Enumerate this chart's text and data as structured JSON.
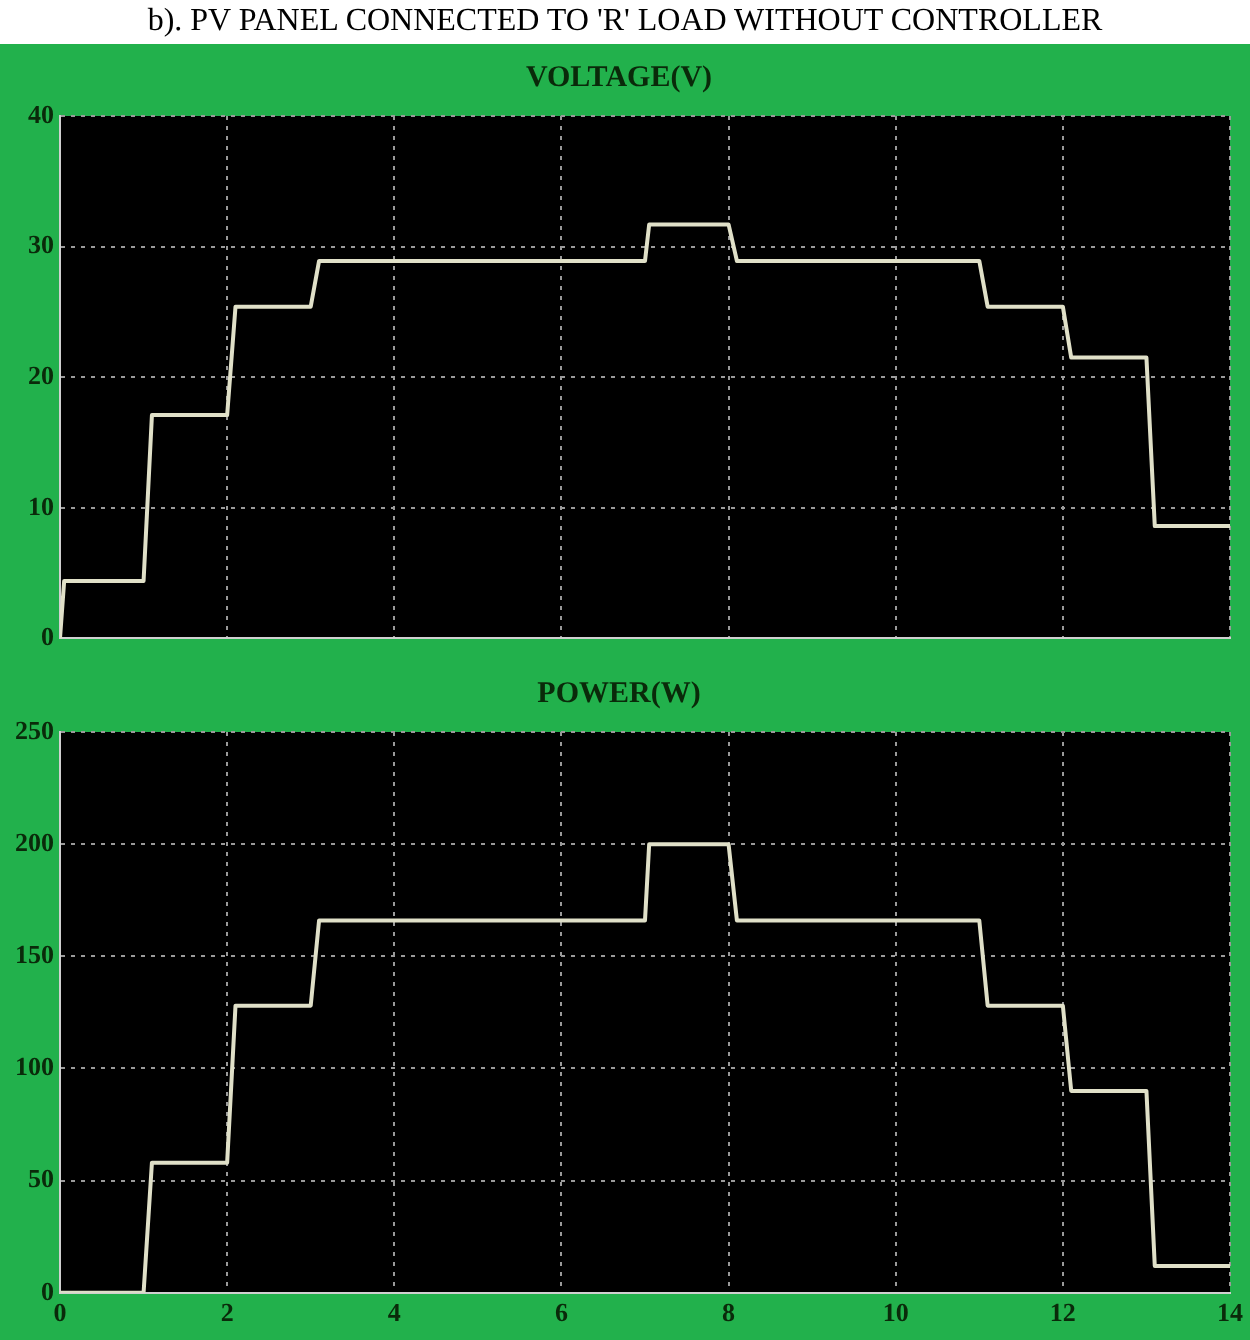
{
  "chart_data": [
    {
      "type": "line",
      "title": "VOLTAGE(V)",
      "annotations": [
        "b). PV PANEL CONNECTED TO 'R' LOAD WITHOUT CONTROLLER"
      ],
      "xlim": [
        0,
        14
      ],
      "xticks": [
        0,
        2,
        4,
        6,
        8,
        10,
        12,
        14
      ],
      "ylim": [
        0,
        40
      ],
      "yticks": [
        0,
        10,
        20,
        30,
        40
      ],
      "grid": true,
      "legend": false,
      "tick_labels": "y",
      "marker": "none",
      "line_style": "solid",
      "series": [
        {
          "color": "#e0e0c8",
          "x": [
            0,
            0.05,
            1,
            1.1,
            2,
            2.1,
            3,
            3.1,
            7,
            7.05,
            8,
            8.1,
            11,
            11.1,
            12,
            12.1,
            13,
            13.1,
            14
          ],
          "values": [
            0,
            4.4,
            4.4,
            17.1,
            17.1,
            25.4,
            25.4,
            28.9,
            28.9,
            31.7,
            31.7,
            28.9,
            28.9,
            25.4,
            25.4,
            21.5,
            21.5,
            8.6,
            8.6
          ]
        }
      ]
    },
    {
      "type": "line",
      "title": "POWER(W)",
      "xlim": [
        0,
        14
      ],
      "xticks": [
        0,
        2,
        4,
        6,
        8,
        10,
        12,
        14
      ],
      "ylim": [
        0,
        250
      ],
      "yticks": [
        0,
        50,
        100,
        150,
        200,
        250
      ],
      "grid": true,
      "legend": false,
      "marker": "none",
      "line_style": "solid",
      "series": [
        {
          "color": "#e0e0c8",
          "x": [
            0,
            1,
            1.1,
            2,
            2.1,
            3,
            3.1,
            7,
            7.05,
            8,
            8.1,
            11,
            11.1,
            12,
            12.1,
            13,
            13.1,
            14
          ],
          "values": [
            0,
            0,
            58,
            58,
            128,
            128,
            166,
            166,
            200,
            200,
            166,
            166,
            128,
            128,
            90,
            90,
            12,
            12
          ]
        }
      ]
    }
  ]
}
